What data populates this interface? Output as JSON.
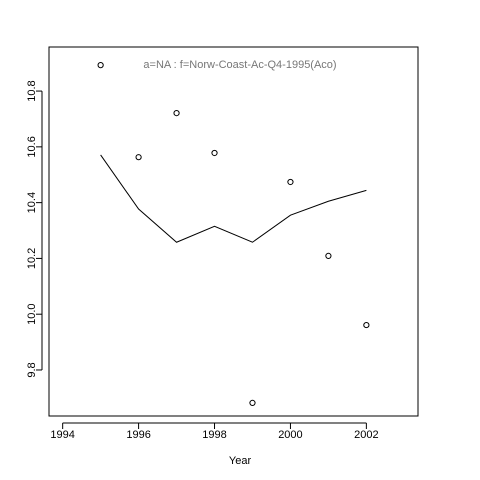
{
  "chart_data": {
    "type": "scatter",
    "title": "a=NA  :  f=Norw-Coast-Ac-Q4-1995(Aco)",
    "x_label": "Year",
    "x": [
      1995,
      1996,
      1997,
      1998,
      1999,
      2000,
      2001,
      2002
    ],
    "series": [
      {
        "style": "points",
        "color": "#000000",
        "values": [
          10.893,
          10.563,
          10.721,
          10.578,
          9.682,
          10.474,
          10.209,
          9.961
        ]
      },
      {
        "style": "line",
        "color": "#000000",
        "values": [
          10.571,
          10.377,
          10.258,
          10.315,
          10.258,
          10.355,
          10.405,
          10.444
        ]
      }
    ],
    "xlim": [
      1993.64,
      2003.36
    ],
    "ylim": [
      9.635,
      10.958
    ],
    "xticks": [
      1994,
      1996,
      1998,
      2000,
      2002
    ],
    "yticks": [
      9.8,
      {
        "value": 10,
        "label": "10.0"
      },
      10.2,
      10.4,
      10.6,
      10.8
    ]
  }
}
